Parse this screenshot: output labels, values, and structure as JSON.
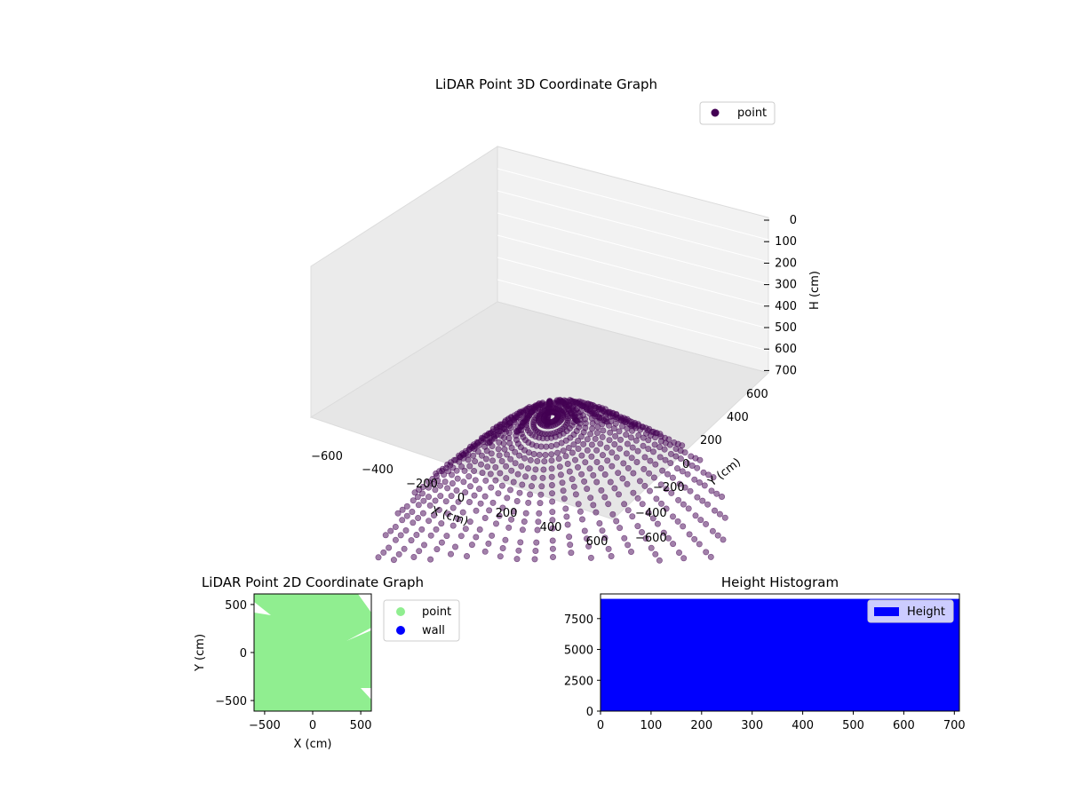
{
  "chart_data": [
    {
      "type": "scatter",
      "title": "LiDAR Point 3D Coordinate Graph",
      "xlabel": "X (cm)",
      "ylabel": "Y (cm)",
      "zlabel": "H (cm)",
      "xlim": [
        -650,
        650
      ],
      "ylim": [
        -650,
        650
      ],
      "zlim": [
        700,
        0
      ],
      "x_ticks": [
        -600,
        -400,
        -200,
        0,
        200,
        400,
        600
      ],
      "x_tick_labels": [
        "−600",
        "−400",
        "−200",
        "0",
        "200",
        "400",
        "600"
      ],
      "y_ticks": [
        -600,
        -400,
        -200,
        0,
        200,
        400,
        600
      ],
      "y_tick_labels": [
        "−600",
        "−400",
        "−200",
        "0",
        "200",
        "400",
        "600"
      ],
      "z_ticks": [
        0,
        100,
        200,
        300,
        400,
        500,
        600,
        700
      ],
      "z_tick_labels": [
        "0",
        "100",
        "200",
        "300",
        "400",
        "500",
        "600",
        "700"
      ],
      "legend": [
        "point"
      ],
      "legend_loc": "top-right",
      "grid": true,
      "marker_color": "#440154",
      "series": [
        {
          "name": "point",
          "note_values": "approximate bowl-shaped scan: rays from origin, height increases with distance",
          "ring_radii": [
            60,
            120,
            180,
            240,
            300,
            360,
            420,
            480,
            540,
            600
          ],
          "ring_heights": [
            20,
            60,
            110,
            170,
            240,
            320,
            400,
            480,
            560,
            640
          ],
          "ray_count": 36
        }
      ]
    },
    {
      "type": "scatter",
      "title": "LiDAR Point 2D Coordinate Graph",
      "xlabel": "X (cm)",
      "ylabel": "Y (cm)",
      "xlim": [
        -610,
        610
      ],
      "ylim": [
        -610,
        610
      ],
      "x_ticks": [
        -500,
        0,
        500
      ],
      "x_tick_labels": [
        "−500",
        "0",
        "500"
      ],
      "y_ticks": [
        -500,
        0,
        500
      ],
      "y_tick_labels": [
        "−500",
        "0",
        "500"
      ],
      "legend": [
        "point",
        "wall"
      ],
      "legend_loc": "right-outside",
      "colors": {
        "point": "#90ee90",
        "wall": "#0000ff"
      },
      "series": [
        {
          "name": "point",
          "region": "dense fill covering nearly entire square"
        },
        {
          "name": "wall",
          "values": []
        }
      ]
    },
    {
      "type": "bar",
      "title": "Height Histogram",
      "legend": [
        "Height"
      ],
      "legend_loc": "top-right",
      "xlim": [
        0,
        710
      ],
      "ylim": [
        0,
        9500
      ],
      "x_ticks": [
        0,
        100,
        200,
        300,
        400,
        500,
        600,
        700
      ],
      "x_tick_labels": [
        "0",
        "100",
        "200",
        "300",
        "400",
        "500",
        "600",
        "700"
      ],
      "y_ticks": [
        0,
        2500,
        5000,
        7500
      ],
      "y_tick_labels": [
        "0",
        "2500",
        "5000",
        "7500"
      ],
      "color": "#0000ff",
      "series": [
        {
          "name": "Height",
          "bins": [
            0,
            710
          ],
          "values": [
            9100
          ]
        }
      ]
    }
  ]
}
